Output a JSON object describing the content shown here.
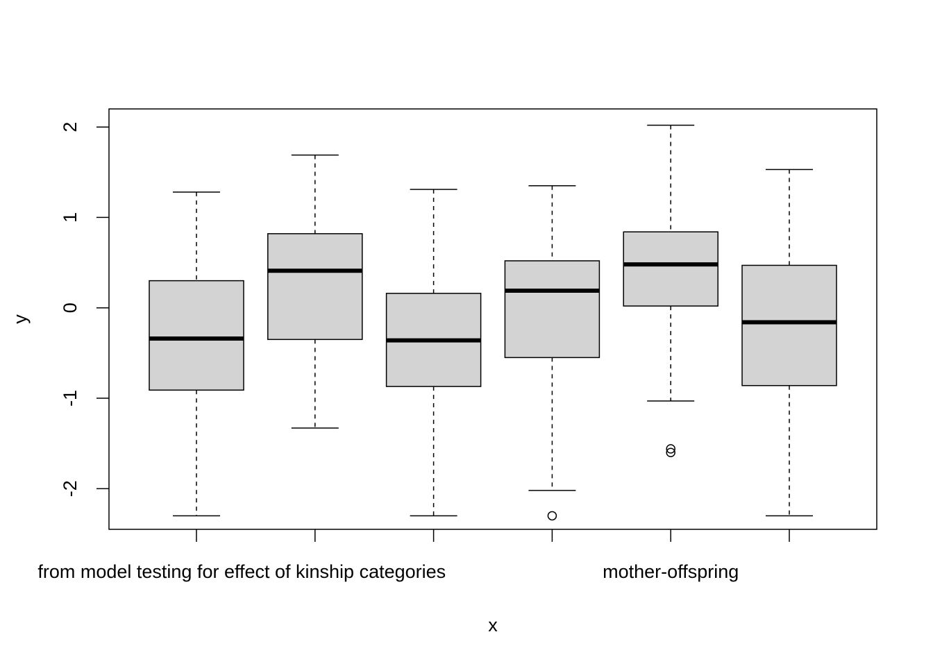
{
  "chart_data": {
    "type": "boxplot",
    "xlabel": "x",
    "ylabel": "y",
    "ylim": [
      -2.45,
      2.2
    ],
    "yticks": [
      -2,
      -1,
      0,
      1,
      2
    ],
    "ytick_labels": [
      "-2",
      "-1",
      "0",
      "1",
      "2"
    ],
    "grid": false,
    "box_fill": "#d3d3d3",
    "category_labels": [
      "from model testing for effect of kinship categories",
      "",
      "",
      "",
      "mother-offspring",
      ""
    ],
    "boxes": [
      {
        "whisker_low": -2.3,
        "q1": -0.91,
        "median": -0.34,
        "q3": 0.3,
        "whisker_high": 1.28,
        "outliers": []
      },
      {
        "whisker_low": -1.33,
        "q1": -0.35,
        "median": 0.41,
        "q3": 0.82,
        "whisker_high": 1.69,
        "outliers": []
      },
      {
        "whisker_low": -2.3,
        "q1": -0.87,
        "median": -0.36,
        "q3": 0.16,
        "whisker_high": 1.31,
        "outliers": []
      },
      {
        "whisker_low": -2.02,
        "q1": -0.55,
        "median": 0.19,
        "q3": 0.52,
        "whisker_high": 1.35,
        "outliers": [
          -2.3
        ]
      },
      {
        "whisker_low": -1.03,
        "q1": 0.02,
        "median": 0.48,
        "q3": 0.84,
        "whisker_high": 2.02,
        "outliers": [
          -1.56,
          -1.6
        ]
      },
      {
        "whisker_low": -2.3,
        "q1": -0.86,
        "median": -0.16,
        "q3": 0.47,
        "whisker_high": 1.53,
        "outliers": []
      }
    ]
  }
}
